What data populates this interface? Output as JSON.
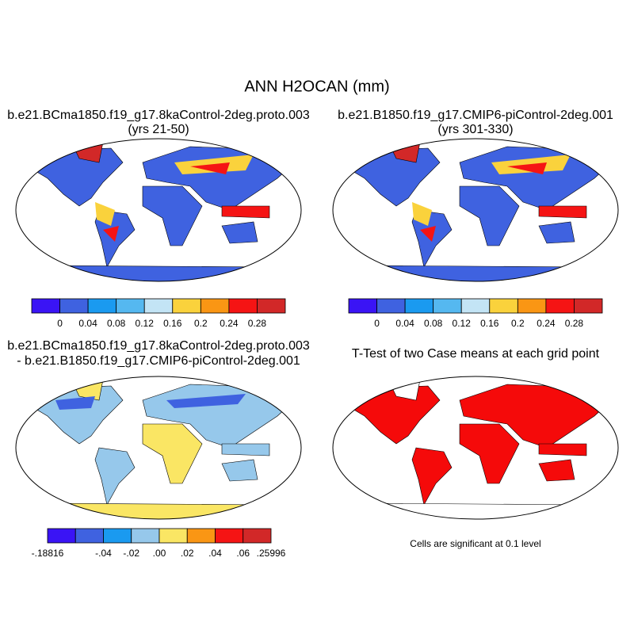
{
  "title": "ANN H2OCAN (mm)",
  "panels": [
    {
      "title": "b.e21.BCma1850.f19_g17.8kaControl-2deg.proto.003",
      "subtitle": "(yrs 21-50)",
      "colorbar": {
        "colors": [
          "#3a14f5",
          "#3f62e0",
          "#1a9af0",
          "#55b8f0",
          "#c3e4f5",
          "#fad23c",
          "#fa9614",
          "#f51414",
          "#d22828"
        ],
        "labels": [
          null,
          "0",
          "0.04",
          "0.08",
          "0.12",
          "0.16",
          "0.2",
          "0.24",
          "0.28",
          null
        ]
      }
    },
    {
      "title": "b.e21.B1850.f19_g17.CMIP6-piControl-2deg.001",
      "subtitle": "(yrs 301-330)",
      "colorbar": {
        "colors": [
          "#3a14f5",
          "#3f62e0",
          "#1a9af0",
          "#55b8f0",
          "#c3e4f5",
          "#fad23c",
          "#fa9614",
          "#f51414",
          "#d22828"
        ],
        "labels": [
          null,
          "0",
          "0.04",
          "0.08",
          "0.12",
          "0.16",
          "0.2",
          "0.24",
          "0.28",
          null
        ]
      }
    },
    {
      "title": "b.e21.BCma1850.f19_g17.8kaControl-2deg.proto.003",
      "subtitle": "- b.e21.B1850.f19_g17.CMIP6-piControl-2deg.001",
      "colorbar": {
        "colors": [
          "#3a14f5",
          "#3f62e0",
          "#1a9af0",
          "#96c8eb",
          "#fae664",
          "#fa9614",
          "#f51414",
          "#d22828"
        ],
        "labels": [
          "-.18816",
          null,
          "-.04",
          "-.02",
          ".00",
          ".02",
          ".04",
          ".06",
          ".25996"
        ]
      }
    },
    {
      "title": "T-Test of two Case means at each grid point",
      "note": "Cells are significant at 0.1 level"
    }
  ]
}
